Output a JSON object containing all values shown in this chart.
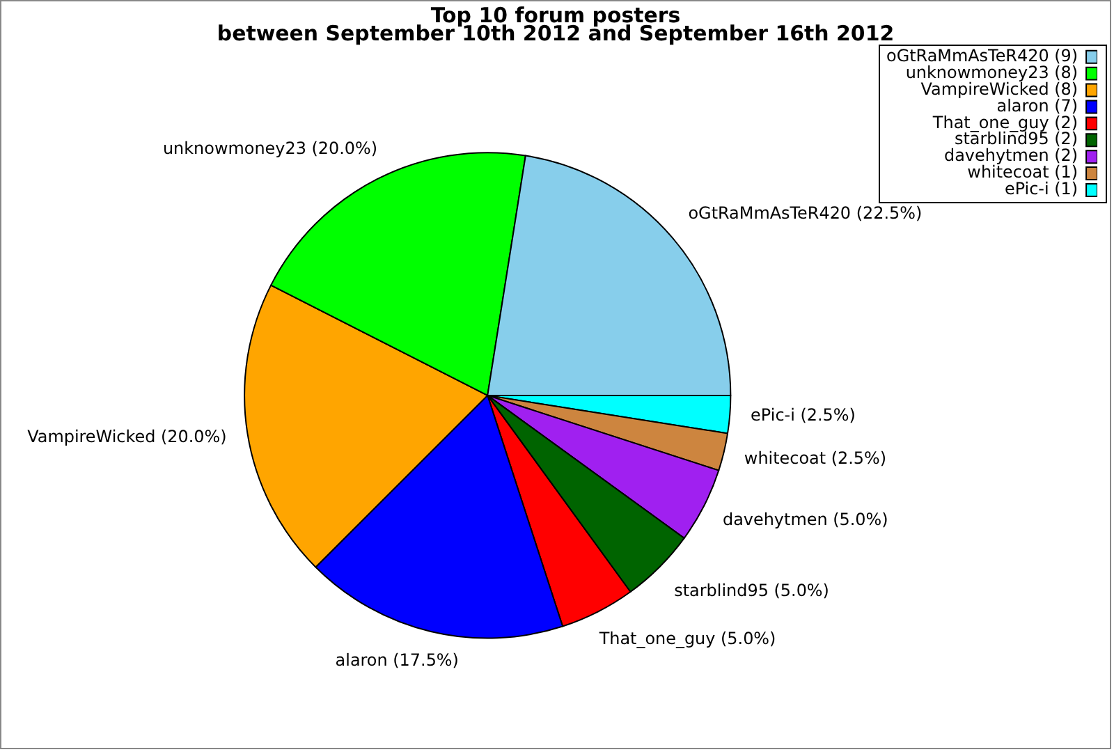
{
  "chart_data": {
    "type": "pie",
    "title": "Top 10 forum posters\nbetween September 10th 2012 and September 16th 2012",
    "categories": [
      "oGtRaMmAsTeR420 (9)",
      "unknowmoney23 (8)",
      "VampireWicked (8)",
      "alaron (7)",
      "That_one_guy (2)",
      "starblind95 (2)",
      "davehytmen (2)",
      "whitecoat (1)",
      "ePic-i (1)"
    ],
    "values": [
      22.5,
      20,
      20,
      17.5,
      5,
      5,
      5,
      2.5,
      2.5
    ],
    "colors": [
      "#87ceeb",
      "#00ff00",
      "#ffa500",
      "#0000ff",
      "#ff0000",
      "#006400",
      "#a020f0",
      "#cd853f",
      "#00ffff"
    ],
    "value_labels": [
      "oGtRaMmAsTeR420 (22.5%)",
      "unknowmoney23 (20.0%)",
      "VampireWicked (20.0%)",
      "alaron (17.5%)",
      "That_one_guy (5.0%)",
      "starblind95 (5.0%)",
      "davehytmen (5.0%)",
      "whitecoat (2.5%)",
      "ePic-i (2.5%)"
    ],
    "legend": "top right"
  }
}
